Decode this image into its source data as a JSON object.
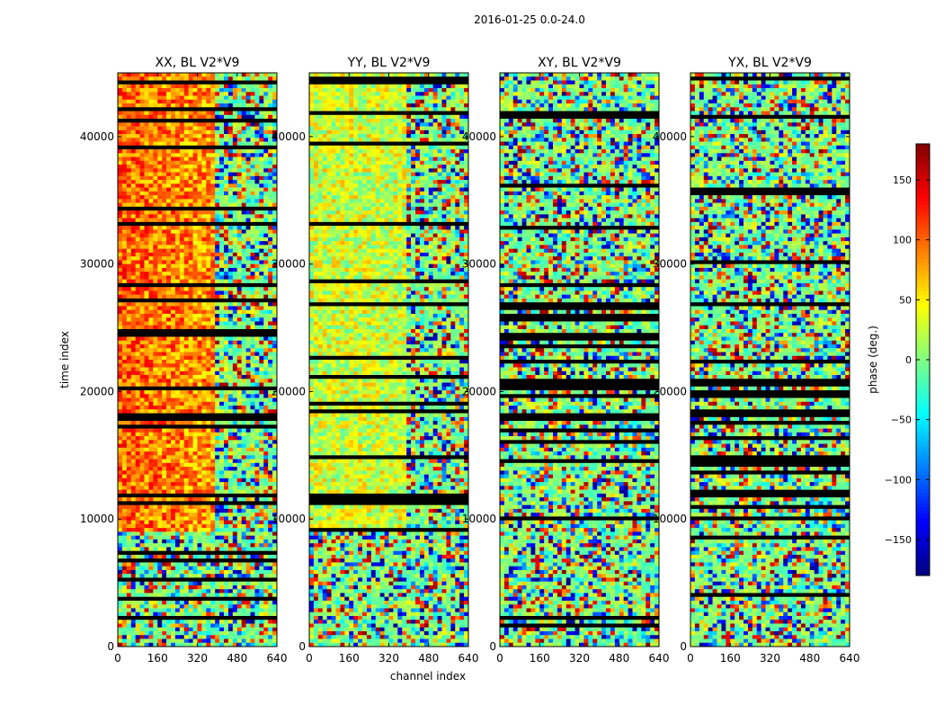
{
  "chart_data": {
    "type": "heatmap",
    "title": "2016-01-25 0.0-24.0",
    "xlabel": "channel index",
    "ylabel": "time index",
    "xlim": [
      0,
      640
    ],
    "ylim": [
      0,
      45000
    ],
    "x_ticks": [
      0,
      160,
      320,
      480,
      640
    ],
    "y_ticks": [
      0,
      10000,
      20000,
      30000,
      40000
    ],
    "colormap": "jet",
    "colorbar": {
      "label": "phase (deg.)",
      "range": [
        -180,
        180
      ],
      "ticks": [
        -150,
        -100,
        -50,
        0,
        50,
        100,
        150
      ],
      "tick_labels": [
        "−150",
        "−100",
        "−50",
        "0",
        "50",
        "100",
        "150"
      ]
    },
    "panels": [
      {
        "title": "XX, BL V2*V9"
      },
      {
        "title": "YY, BL V2*V9"
      },
      {
        "title": "XY, BL V2*V9"
      },
      {
        "title": "YX, BL V2*V9"
      }
    ],
    "grid": false,
    "legend": "none"
  }
}
